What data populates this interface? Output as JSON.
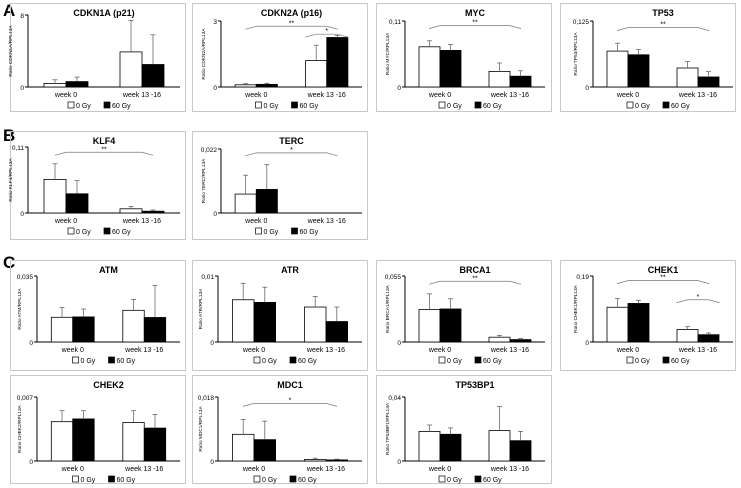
{
  "legend_labels": [
    "0 Gy",
    "60 Gy"
  ],
  "section_letters": [
    "A",
    "B",
    "C"
  ],
  "chart_data": [
    {
      "type": "bar",
      "section": "A",
      "title": "CDKN1A (p21)",
      "ylabel": "Ratio CDKN1A/RPL13A",
      "ytick_max_label": "8",
      "ytick_min_label": "0",
      "ylim": [
        0,
        8
      ],
      "categories": [
        "week 0",
        "week 13 -16"
      ],
      "series": [
        {
          "name": "0 Gy",
          "values": [
            0.4,
            3.9
          ],
          "errors": [
            0.4,
            3.5
          ]
        },
        {
          "name": "60 Gy",
          "values": [
            0.6,
            2.5
          ],
          "errors": [
            0.5,
            3.3
          ]
        }
      ],
      "significance": []
    },
    {
      "type": "bar",
      "section": "A",
      "title": "CDKN2A (p16)",
      "ylabel": "Ratio CDKN2A/RPL13A",
      "ytick_max_label": "3",
      "ytick_min_label": "0",
      "ylim": [
        0,
        3
      ],
      "categories": [
        "week 0",
        "week 13 -16"
      ],
      "series": [
        {
          "name": "0 Gy",
          "values": [
            0.1,
            1.2
          ],
          "errors": [
            0.05,
            0.7
          ]
        },
        {
          "name": "60 Gy",
          "values": [
            0.12,
            2.25
          ],
          "errors": [
            0.05,
            0.1
          ]
        }
      ],
      "significance": [
        {
          "label": "**",
          "from": "week 0",
          "to": "week 13 -16",
          "level": 0.92
        },
        {
          "label": "*",
          "from": "week 13 -16",
          "to": "week 13 -16",
          "level": 0.8
        }
      ]
    },
    {
      "type": "bar",
      "section": "A",
      "title": "MYC",
      "ylabel": "Ratio MYC/RPL13A",
      "ytick_max_label": "0,11",
      "ytick_min_label": "0",
      "ylim": [
        0,
        0.11
      ],
      "categories": [
        "week 0",
        "week 13 -16"
      ],
      "series": [
        {
          "name": "0 Gy",
          "values": [
            0.067,
            0.026
          ],
          "errors": [
            0.01,
            0.014
          ]
        },
        {
          "name": "60 Gy",
          "values": [
            0.061,
            0.018
          ],
          "errors": [
            0.01,
            0.009
          ]
        }
      ],
      "significance": [
        {
          "label": "**",
          "from": "week 0",
          "to": "week 13 -16",
          "level": 0.93
        }
      ]
    },
    {
      "type": "bar",
      "section": "A",
      "title": "TP53",
      "ylabel": "Ratio TP53/RPL13A",
      "ytick_max_label": "0,125",
      "ytick_min_label": "0",
      "ylim": [
        0,
        0.125
      ],
      "categories": [
        "week 0",
        "week 13 -16"
      ],
      "series": [
        {
          "name": "0 Gy",
          "values": [
            0.068,
            0.036
          ],
          "errors": [
            0.015,
            0.012
          ]
        },
        {
          "name": "60 Gy",
          "values": [
            0.061,
            0.019
          ],
          "errors": [
            0.01,
            0.01
          ]
        }
      ],
      "significance": [
        {
          "label": "**",
          "from": "week 0",
          "to": "week 13 -16",
          "level": 0.9
        }
      ]
    },
    {
      "type": "bar",
      "section": "B",
      "title": "KLF4",
      "ylabel": "Ratio KLF4/RPL13A",
      "ytick_max_label": "0,11",
      "ytick_min_label": "0",
      "ylim": [
        0,
        0.11
      ],
      "categories": [
        "week 0",
        "week 13 -16"
      ],
      "series": [
        {
          "name": "0 Gy",
          "values": [
            0.056,
            0.007
          ],
          "errors": [
            0.026,
            0.004
          ]
        },
        {
          "name": "60 Gy",
          "values": [
            0.032,
            0.003
          ],
          "errors": [
            0.022,
            0.002
          ]
        }
      ],
      "significance": [
        {
          "label": "**",
          "from": "week 0",
          "to": "week 13 -16",
          "level": 0.92
        }
      ]
    },
    {
      "type": "bar",
      "section": "B",
      "title": "TERC",
      "ylabel": "Ratio TERC/RPL13A",
      "ytick_max_label": "0,022",
      "ytick_min_label": "0",
      "ylim": [
        0,
        0.022
      ],
      "categories": [
        "week 0",
        "week 13 -16"
      ],
      "series": [
        {
          "name": "0 Gy",
          "values": [
            0.0065,
            0
          ],
          "errors": [
            0.0065,
            0
          ]
        },
        {
          "name": "60 Gy",
          "values": [
            0.0081,
            0
          ],
          "errors": [
            0.0085,
            0
          ]
        }
      ],
      "significance": [
        {
          "label": "*",
          "from": "week 0",
          "to": "week 13 -16",
          "level": 0.94
        }
      ]
    },
    {
      "type": "bar",
      "section": "C",
      "title": "ATM",
      "ylabel": "Ratio ATM/RPL13A",
      "ytick_max_label": "0,035",
      "ytick_min_label": "0",
      "ylim": [
        0,
        0.035
      ],
      "categories": [
        "week 0",
        "week 13 -16"
      ],
      "series": [
        {
          "name": "0 Gy",
          "values": [
            0.0131,
            0.0168
          ],
          "errors": [
            0.0052,
            0.0058
          ]
        },
        {
          "name": "60 Gy",
          "values": [
            0.0133,
            0.013
          ],
          "errors": [
            0.0042,
            0.017
          ]
        }
      ],
      "significance": []
    },
    {
      "type": "bar",
      "section": "C",
      "title": "ATR",
      "ylabel": "Ratio ATR/RPL13A",
      "ytick_max_label": "0,01",
      "ytick_min_label": "0",
      "ylim": [
        0,
        0.01
      ],
      "categories": [
        "week 0",
        "week 13 -16"
      ],
      "series": [
        {
          "name": "0 Gy",
          "values": [
            0.0064,
            0.0053
          ],
          "errors": [
            0.0025,
            0.0016
          ]
        },
        {
          "name": "60 Gy",
          "values": [
            0.006,
            0.0031
          ],
          "errors": [
            0.0023,
            0.0022
          ]
        }
      ],
      "significance": []
    },
    {
      "type": "bar",
      "section": "C",
      "title": "BRCA1",
      "ylabel": "Ratio BRCA1/RPL13A",
      "ytick_max_label": "0,055",
      "ytick_min_label": "0",
      "ylim": [
        0,
        0.055
      ],
      "categories": [
        "week 0",
        "week 13 -16"
      ],
      "series": [
        {
          "name": "0 Gy",
          "values": [
            0.0271,
            0.004
          ],
          "errors": [
            0.013,
            0.0015
          ]
        },
        {
          "name": "60 Gy",
          "values": [
            0.0275,
            0.002
          ],
          "errors": [
            0.0085,
            0.0008
          ]
        }
      ],
      "significance": [
        {
          "label": "**",
          "from": "week 0",
          "to": "week 13 -16",
          "level": 0.92
        }
      ]
    },
    {
      "type": "bar",
      "section": "C",
      "title": "CHEK1",
      "ylabel": "Ratio CHEK1/RPL13A",
      "ytick_max_label": "0,19",
      "ytick_min_label": "0",
      "ylim": [
        0,
        0.19
      ],
      "categories": [
        "week 0",
        "week 13 -16"
      ],
      "series": [
        {
          "name": "0 Gy",
          "values": [
            0.1,
            0.036
          ],
          "errors": [
            0.025,
            0.008
          ]
        },
        {
          "name": "60 Gy",
          "values": [
            0.111,
            0.021
          ],
          "errors": [
            0.009,
            0.005
          ]
        }
      ],
      "significance": [
        {
          "label": "**",
          "from": "week 0",
          "to": "week 13 -16",
          "level": 0.93
        },
        {
          "label": "*",
          "from": "week 13 -16",
          "to": "week 13 -16",
          "level": 0.64
        }
      ]
    },
    {
      "type": "bar",
      "section": "C",
      "title": "CHEK2",
      "ylabel": "Ratio CHEK2/RPL13A",
      "ytick_max_label": "0,007",
      "ytick_min_label": "0",
      "ylim": [
        0,
        0.007
      ],
      "categories": [
        "week 0",
        "week 13 -16"
      ],
      "series": [
        {
          "name": "0 Gy",
          "values": [
            0.0043,
            0.0042
          ],
          "errors": [
            0.0012,
            0.0013
          ]
        },
        {
          "name": "60 Gy",
          "values": [
            0.0046,
            0.0036
          ],
          "errors": [
            0.0009,
            0.0015
          ]
        }
      ],
      "significance": []
    },
    {
      "type": "bar",
      "section": "C",
      "title": "MDC1",
      "ylabel": "Ratio MDC1/RPL13A",
      "ytick_max_label": "0,018",
      "ytick_min_label": "0",
      "ylim": [
        0,
        0.018
      ],
      "categories": [
        "week 0",
        "week 13 -16"
      ],
      "series": [
        {
          "name": "0 Gy",
          "values": [
            0.0075,
            0.0004
          ],
          "errors": [
            0.0042,
            0.0004
          ]
        },
        {
          "name": "60 Gy",
          "values": [
            0.006,
            0.0003
          ],
          "errors": [
            0.0052,
            0.0002
          ]
        }
      ],
      "significance": [
        {
          "label": "*",
          "from": "week 0",
          "to": "week 13 -16",
          "level": 0.9
        }
      ]
    },
    {
      "type": "bar",
      "section": "C",
      "title": "TP53BP1",
      "ylabel": "Ratio TP53BP1/RPL13A",
      "ytick_max_label": "0,04",
      "ytick_min_label": "0",
      "ylim": [
        0,
        0.04
      ],
      "categories": [
        "week 0",
        "week 13 -16"
      ],
      "series": [
        {
          "name": "0 Gy",
          "values": [
            0.0185,
            0.019
          ],
          "errors": [
            0.004,
            0.015
          ]
        },
        {
          "name": "60 Gy",
          "values": [
            0.0167,
            0.0127
          ],
          "errors": [
            0.004,
            0.0058
          ]
        }
      ],
      "significance": []
    }
  ]
}
